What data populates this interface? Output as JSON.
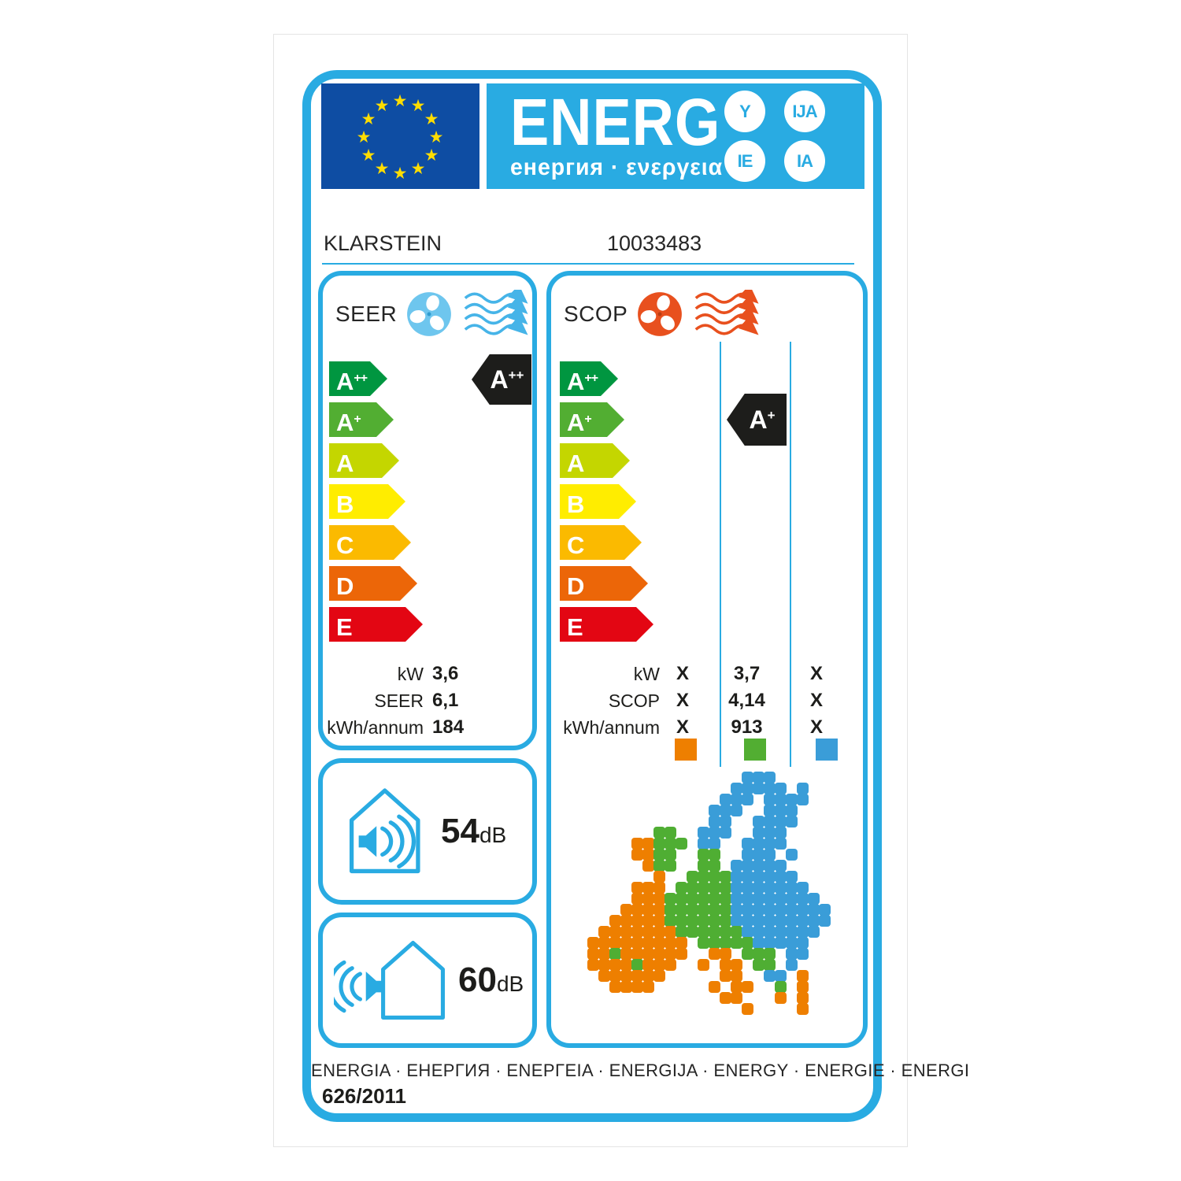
{
  "header": {
    "logo_title": "ENERG",
    "logo_subtitle": "енергия · ενεργεια",
    "badges": [
      "Y",
      "IJA",
      "IE",
      "IA"
    ]
  },
  "product": {
    "brand": "KLARSTEIN",
    "model": "10033483"
  },
  "classes": [
    {
      "letter": "A",
      "sup": "++"
    },
    {
      "letter": "A",
      "sup": "+"
    },
    {
      "letter": "A",
      "sup": ""
    },
    {
      "letter": "B",
      "sup": ""
    },
    {
      "letter": "C",
      "sup": ""
    },
    {
      "letter": "D",
      "sup": ""
    },
    {
      "letter": "E",
      "sup": ""
    }
  ],
  "seer": {
    "title": "SEER",
    "rating_letter": "A",
    "rating_sup": "++",
    "rows": [
      {
        "label": "kW",
        "value": "3,6"
      },
      {
        "label": "SEER",
        "value": "6,1"
      },
      {
        "label": "kWh/annum",
        "value": "184"
      }
    ]
  },
  "scop": {
    "title": "SCOP",
    "rating_letter": "A",
    "rating_sup": "+",
    "rows": [
      {
        "label": "kW",
        "c1": "X",
        "c2": "3,7",
        "c3": "X"
      },
      {
        "label": "SCOP",
        "c1": "X",
        "c2": "4,14",
        "c3": "X"
      },
      {
        "label": "kWh/annum",
        "c1": "X",
        "c2": "913",
        "c3": "X"
      }
    ]
  },
  "noise": {
    "indoor": {
      "value": "54",
      "unit": "dB"
    },
    "outdoor": {
      "value": "60",
      "unit": "dB"
    }
  },
  "footer": {
    "languages": "ENERGIA · ЕНЕРГИЯ · ΕΝΕΡΓΕΙΑ · ENERGIJA · ENERGY · ENERGIE · ENERGI",
    "regulation": "626/2011"
  },
  "colors": {
    "frame_blue": "#29abe2",
    "eu_flag_blue": "#0e4da3",
    "star_yellow": "#ffdd00",
    "class_colors": [
      "#009640",
      "#52ae32",
      "#c4d600",
      "#ffed00",
      "#fbba00",
      "#ec6608",
      "#e30613"
    ],
    "rating_black": "#1d1d1b",
    "seer_icon_blue": "#6ec6ee",
    "scop_icon_red": "#e8501e",
    "legend_colors": [
      "#ee7f00",
      "#52ae32",
      "#3a9dd8"
    ]
  },
  "map": {
    "cell": 14,
    "palette": {
      "B": "#3a9dd8",
      "G": "#4fae33",
      "O": "#ee7f00"
    },
    "grid": [
      "..............BBB.......",
      ".............BBBBB.B....",
      "............BBB.BBBB....",
      "...........BBB..BBB.....",
      "...........BB..BBBB.....",
      "......GG..BBB..BBB......",
      "....OOGGG.BB..BBBB......",
      "....OOGG..GG..BBB.B.....",
      ".....OGG..GG.BBBBB......",
      "......O..GGGGBBBBBB.....",
      "....OOO.GGGGGBBBBBBB....",
      "....OOOGGGGGGBBBBBBBB...",
      "...OOOOGGGGGGBBBBBBBBB..",
      "..OOOOOGGGGGGBBBBBBBBB..",
      ".OOOOOOOGGGGGGBBBBBBB...",
      "OOOOOOOOO.GGGGGBBBBB....",
      "OOGOOOOOO..OO.GGG.BB....",
      "OOOOGOOO..O.OO.GG.B.....",
      ".OOOOOO.....OO..BB.O....",
      "..OOOO.....O.OO..G.O....",
      "............OO...O.O....",
      "..............O....O...."
    ]
  }
}
